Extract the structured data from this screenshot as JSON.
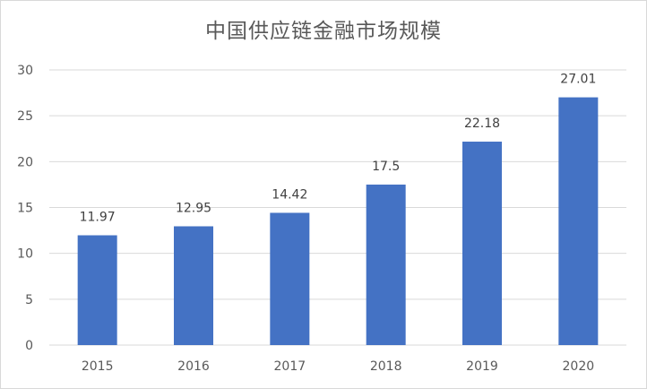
{
  "chart_data": {
    "type": "bar",
    "title": "中国供应链金融市场规模",
    "categories": [
      "2015",
      "2016",
      "2017",
      "2018",
      "2019",
      "2020"
    ],
    "values": [
      11.97,
      12.95,
      14.42,
      17.5,
      22.18,
      27.01
    ],
    "data_labels": [
      "11.97",
      "12.95",
      "14.42",
      "17.5",
      "22.18",
      "27.01"
    ],
    "ylim": [
      0,
      30
    ],
    "yticks": [
      "0",
      "5",
      "10",
      "15",
      "20",
      "25",
      "30"
    ],
    "xlabel": "",
    "ylabel": "",
    "grid": true,
    "legend": "none",
    "bar_color": "#4472c4",
    "grid_color": "#d9d9d9"
  }
}
